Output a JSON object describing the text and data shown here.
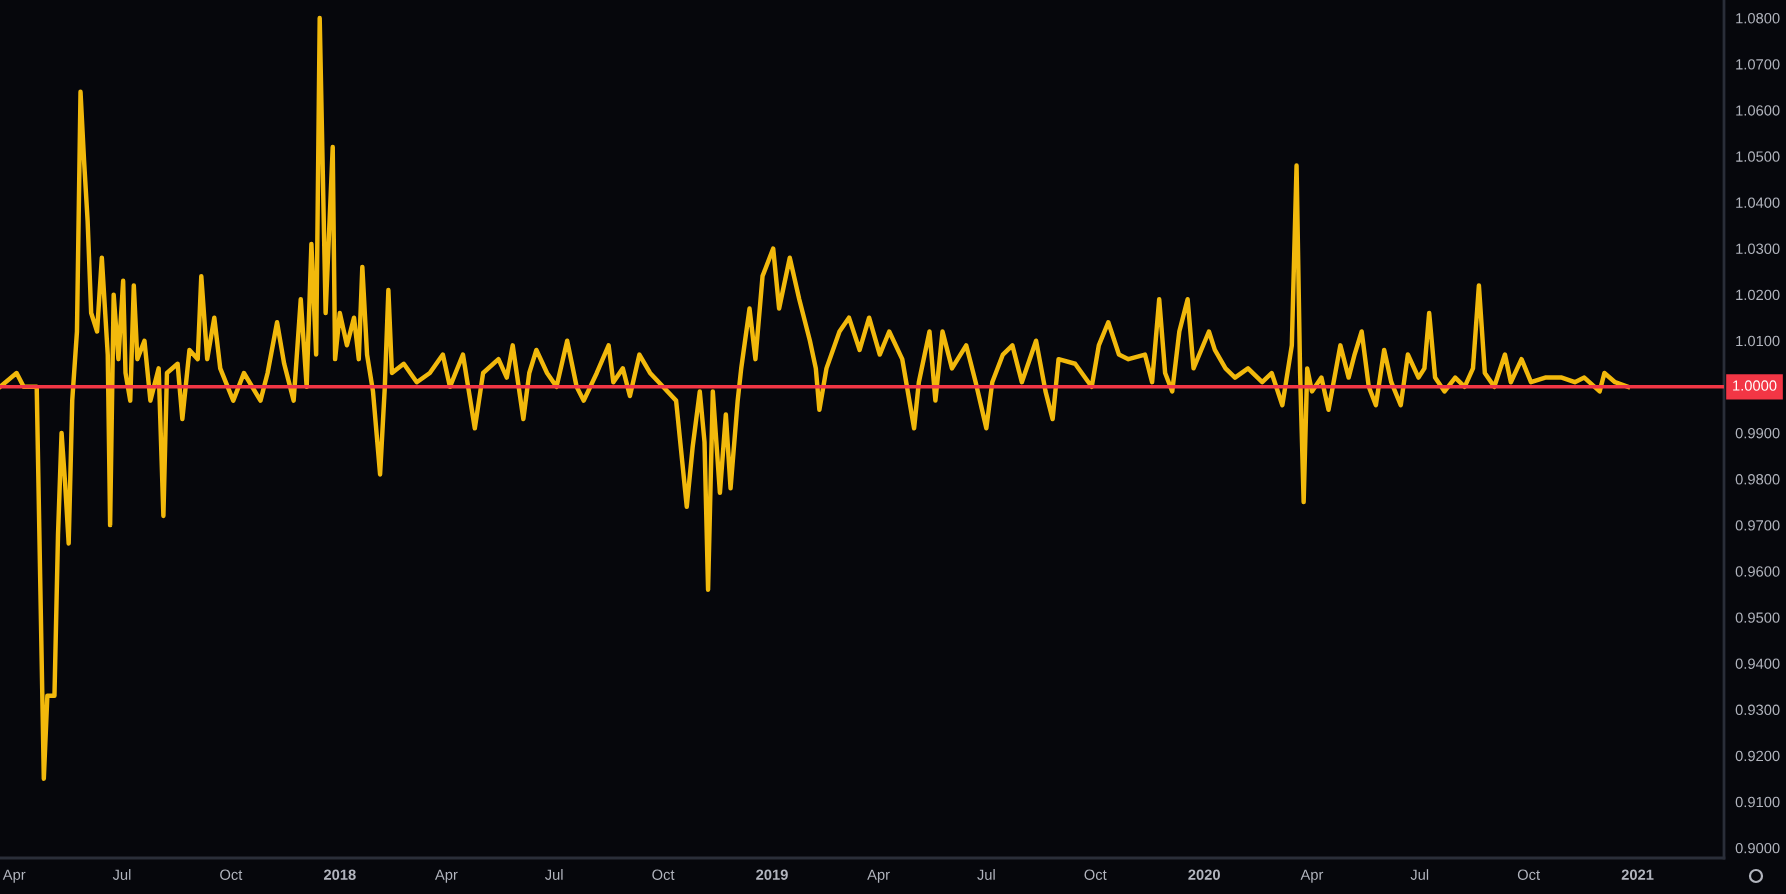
{
  "chart_data": {
    "type": "line",
    "x": [
      "2017-03-20",
      "2017-04-03",
      "2017-04-09",
      "2017-04-20",
      "2017-04-26",
      "2017-04-29",
      "2017-05-05",
      "2017-05-08",
      "2017-05-11",
      "2017-05-14",
      "2017-05-17",
      "2017-05-20",
      "2017-05-24",
      "2017-05-27",
      "2017-05-30",
      "2017-06-02",
      "2017-06-05",
      "2017-06-10",
      "2017-06-14",
      "2017-06-19",
      "2017-06-21",
      "2017-06-24",
      "2017-06-28",
      "2017-07-02",
      "2017-07-04",
      "2017-07-08",
      "2017-07-11",
      "2017-07-14",
      "2017-07-20",
      "2017-07-25",
      "2017-08-01",
      "2017-08-05",
      "2017-08-08",
      "2017-08-17",
      "2017-08-21",
      "2017-08-27",
      "2017-09-03",
      "2017-09-06",
      "2017-09-11",
      "2017-09-17",
      "2017-09-22",
      "2017-10-03",
      "2017-10-12",
      "2017-10-26",
      "2017-11-01",
      "2017-11-09",
      "2017-11-15",
      "2017-11-23",
      "2017-11-29",
      "2017-12-04",
      "2017-12-08",
      "2017-12-12",
      "2017-12-15",
      "2017-12-20",
      "2017-12-26",
      "2017-12-28",
      "2018-01-01",
      "2018-01-07",
      "2018-01-13",
      "2018-01-17",
      "2018-01-20",
      "2018-01-24",
      "2018-01-29",
      "2018-02-04",
      "2018-02-08",
      "2018-02-11",
      "2018-02-14",
      "2018-02-24",
      "2018-03-07",
      "2018-03-18",
      "2018-03-29",
      "2018-04-04",
      "2018-04-15",
      "2018-04-25",
      "2018-05-02",
      "2018-05-15",
      "2018-05-22",
      "2018-05-27",
      "2018-06-05",
      "2018-06-10",
      "2018-06-16",
      "2018-06-25",
      "2018-07-03",
      "2018-07-12",
      "2018-07-20",
      "2018-07-26",
      "2018-08-06",
      "2018-08-16",
      "2018-08-20",
      "2018-08-28",
      "2018-09-03",
      "2018-09-11",
      "2018-09-20",
      "2018-10-01",
      "2018-10-12",
      "2018-10-21",
      "2018-10-26",
      "2018-11-01",
      "2018-11-05",
      "2018-11-08",
      "2018-11-12",
      "2018-11-18",
      "2018-11-23",
      "2018-11-27",
      "2018-12-03",
      "2018-12-06",
      "2018-12-13",
      "2018-12-18",
      "2018-12-24",
      "2019-01-02",
      "2019-01-07",
      "2019-01-16",
      "2019-01-24",
      "2019-02-02",
      "2019-02-07",
      "2019-02-10",
      "2019-02-16",
      "2019-02-27",
      "2019-03-07",
      "2019-03-16",
      "2019-03-24",
      "2019-04-02",
      "2019-04-10",
      "2019-04-21",
      "2019-05-01",
      "2019-05-05",
      "2019-05-14",
      "2019-05-19",
      "2019-05-25",
      "2019-06-02",
      "2019-06-14",
      "2019-06-22",
      "2019-07-01",
      "2019-07-06",
      "2019-07-15",
      "2019-07-23",
      "2019-07-31",
      "2019-08-12",
      "2019-08-20",
      "2019-08-26",
      "2019-08-31",
      "2019-09-14",
      "2019-09-28",
      "2019-10-04",
      "2019-10-12",
      "2019-10-21",
      "2019-10-29",
      "2019-11-12",
      "2019-11-18",
      "2019-11-24",
      "2019-11-29",
      "2019-12-05",
      "2019-12-11",
      "2019-12-18",
      "2019-12-23",
      "2020-01-05",
      "2020-01-10",
      "2020-01-19",
      "2020-01-27",
      "2020-02-07",
      "2020-02-19",
      "2020-02-27",
      "2020-03-07",
      "2020-03-15",
      "2020-03-19",
      "2020-03-22",
      "2020-03-25",
      "2020-03-28",
      "2020-04-01",
      "2020-04-09",
      "2020-04-15",
      "2020-04-25",
      "2020-05-02",
      "2020-05-07",
      "2020-05-13",
      "2020-05-19",
      "2020-05-25",
      "2020-06-01",
      "2020-06-07",
      "2020-06-15",
      "2020-06-21",
      "2020-06-30",
      "2020-07-05",
      "2020-07-09",
      "2020-07-14",
      "2020-07-22",
      "2020-07-31",
      "2020-08-08",
      "2020-08-15",
      "2020-08-20",
      "2020-08-25",
      "2020-09-02",
      "2020-09-11",
      "2020-09-16",
      "2020-09-25",
      "2020-10-03",
      "2020-10-15",
      "2020-10-29",
      "2020-11-09",
      "2020-11-17",
      "2020-11-30",
      "2020-12-04",
      "2020-12-13",
      "2020-12-24"
    ],
    "series": [
      {
        "color": "#f2b90c",
        "values": [
          1.0,
          1.003,
          1.0,
          1.0,
          0.915,
          0.933,
          0.933,
          0.968,
          0.99,
          0.979,
          0.966,
          0.997,
          1.012,
          1.064,
          1.049,
          1.036,
          1.016,
          1.012,
          1.028,
          1.007,
          0.97,
          1.02,
          1.006,
          1.023,
          1.003,
          0.997,
          1.022,
          1.006,
          1.01,
          0.997,
          1.004,
          0.972,
          1.003,
          1.005,
          0.993,
          1.008,
          1.006,
          1.024,
          1.006,
          1.015,
          1.004,
          0.997,
          1.003,
          0.997,
          1.003,
          1.014,
          1.005,
          0.997,
          1.019,
          1.0,
          1.031,
          1.007,
          1.08,
          1.016,
          1.052,
          1.006,
          1.016,
          1.009,
          1.015,
          1.006,
          1.026,
          1.007,
          0.999,
          0.981,
          1.0,
          1.021,
          1.003,
          1.005,
          1.001,
          1.003,
          1.007,
          1.0,
          1.007,
          0.991,
          1.003,
          1.006,
          1.002,
          1.009,
          0.993,
          1.003,
          1.008,
          1.003,
          1.0,
          1.01,
          1.0,
          0.997,
          1.003,
          1.009,
          1.001,
          1.004,
          0.998,
          1.007,
          1.003,
          1.0,
          0.997,
          0.974,
          0.987,
          0.999,
          0.988,
          0.956,
          0.999,
          0.977,
          0.994,
          0.978,
          0.997,
          1.004,
          1.017,
          1.006,
          1.024,
          1.03,
          1.017,
          1.028,
          1.019,
          1.01,
          1.004,
          0.995,
          1.004,
          1.012,
          1.015,
          1.008,
          1.015,
          1.007,
          1.012,
          1.006,
          0.991,
          1.001,
          1.012,
          0.997,
          1.012,
          1.004,
          1.009,
          1.001,
          0.991,
          1.001,
          1.007,
          1.009,
          1.001,
          1.01,
          0.999,
          0.993,
          1.006,
          1.005,
          1.0,
          1.009,
          1.014,
          1.007,
          1.006,
          1.007,
          1.001,
          1.019,
          1.003,
          0.999,
          1.012,
          1.019,
          1.004,
          1.012,
          1.008,
          1.004,
          1.002,
          1.004,
          1.001,
          1.003,
          0.996,
          1.009,
          1.048,
          1.003,
          0.975,
          1.004,
          0.999,
          1.002,
          0.995,
          1.009,
          1.002,
          1.007,
          1.012,
          1.0,
          0.996,
          1.008,
          1.001,
          0.996,
          1.007,
          1.002,
          1.004,
          1.016,
          1.002,
          0.999,
          1.002,
          1.0,
          1.004,
          1.022,
          1.003,
          1.0,
          1.007,
          1.001,
          1.006,
          1.001,
          1.002,
          1.002,
          1.001,
          1.002,
          0.999,
          1.003,
          1.001,
          1.0
        ]
      }
    ],
    "xlim": [
      "2017-03-20",
      "2021-03-15"
    ],
    "xticks": [
      {
        "value": "2017-04",
        "label": "Apr"
      },
      {
        "value": "2017-07",
        "label": "Jul"
      },
      {
        "value": "2017-10",
        "label": "Oct"
      },
      {
        "value": "2018",
        "label": "2018"
      },
      {
        "value": "2018-04",
        "label": "Apr"
      },
      {
        "value": "2018-07",
        "label": "Jul"
      },
      {
        "value": "2018-10",
        "label": "Oct"
      },
      {
        "value": "2019",
        "label": "2019"
      },
      {
        "value": "2019-04",
        "label": "Apr"
      },
      {
        "value": "2019-07",
        "label": "Jul"
      },
      {
        "value": "2019-10",
        "label": "Oct"
      },
      {
        "value": "2020",
        "label": "2020"
      },
      {
        "value": "2020-04",
        "label": "Apr"
      },
      {
        "value": "2020-07",
        "label": "Jul"
      },
      {
        "value": "2020-10",
        "label": "Oct"
      },
      {
        "value": "2021",
        "label": "2021"
      }
    ],
    "ylim": [
      0.8978,
      1.0839
    ],
    "yticks": [
      {
        "value": 0.9,
        "label": "0.9000"
      },
      {
        "value": 0.91,
        "label": "0.9100"
      },
      {
        "value": 0.92,
        "label": "0.9200"
      },
      {
        "value": 0.93,
        "label": "0.9300"
      },
      {
        "value": 0.94,
        "label": "0.9400"
      },
      {
        "value": 0.95,
        "label": "0.9500"
      },
      {
        "value": 0.96,
        "label": "0.9600"
      },
      {
        "value": 0.97,
        "label": "0.9700"
      },
      {
        "value": 0.98,
        "label": "0.9800"
      },
      {
        "value": 0.99,
        "label": "0.9900"
      },
      {
        "value": 1.01,
        "label": "1.0100"
      },
      {
        "value": 1.02,
        "label": "1.0200"
      },
      {
        "value": 1.03,
        "label": "1.0300"
      },
      {
        "value": 1.04,
        "label": "1.0400"
      },
      {
        "value": 1.05,
        "label": "1.0500"
      },
      {
        "value": 1.06,
        "label": "1.0600"
      },
      {
        "value": 1.07,
        "label": "1.0700"
      },
      {
        "value": 1.08,
        "label": "1.0800"
      }
    ],
    "ref_lines": [
      {
        "axis": "y",
        "value": 1.0,
        "label": "1.0000",
        "color": "#f23645"
      }
    ],
    "grid": false
  }
}
